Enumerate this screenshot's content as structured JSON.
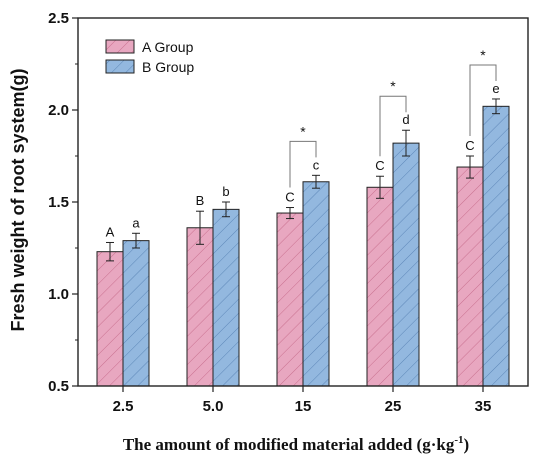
{
  "chart_data": {
    "type": "bar",
    "categories": [
      "2.5",
      "5.0",
      "15",
      "25",
      "35"
    ],
    "series": [
      {
        "name": "A Group",
        "values": [
          1.23,
          1.36,
          1.44,
          1.58,
          1.69
        ],
        "errors": [
          0.05,
          0.09,
          0.03,
          0.06,
          0.06
        ],
        "letters": [
          "A",
          "B",
          "C",
          "C",
          "C"
        ],
        "color": "#e8a7c0",
        "hatch_color": "#c9708f"
      },
      {
        "name": "B Group",
        "values": [
          1.29,
          1.46,
          1.61,
          1.82,
          2.02
        ],
        "errors": [
          0.04,
          0.04,
          0.035,
          0.07,
          0.04
        ],
        "letters": [
          "a",
          "b",
          "c",
          "d",
          "e"
        ],
        "color": "#93b8df",
        "hatch_color": "#5d87b8"
      }
    ],
    "significance": [
      {
        "category": "15",
        "label": "*"
      },
      {
        "category": "25",
        "label": "*"
      },
      {
        "category": "35",
        "label": "*"
      }
    ],
    "ylabel": "Fresh weight of root system(g)",
    "xlabel": "The amount of modified material added (g·kg",
    "xlabel_superscript": "-1",
    "xlabel_close": ")",
    "ylim": [
      0.5,
      2.5
    ],
    "yticks": [
      "0.5",
      "1.0",
      "1.5",
      "2.0",
      "2.5"
    ],
    "legend_position": "top-left",
    "grid": false
  }
}
